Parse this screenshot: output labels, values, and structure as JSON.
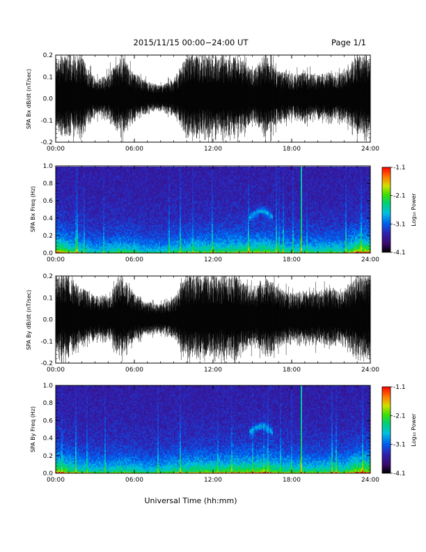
{
  "header": {
    "title": "2015/11/15  00:00−24:00 UT",
    "page": "Page 1/1"
  },
  "xlabel": "Universal Time (hh:mm)",
  "chart_data": [
    {
      "type": "line",
      "ylabel": "SPA Bx dB/dt (nT/sec)",
      "xlim": [
        0,
        24
      ],
      "ylim": [
        -0.2,
        0.2
      ],
      "x_ticks": [
        "00:00",
        "06:00",
        "12:00",
        "18:00",
        "24:00"
      ],
      "y_ticks": [
        "-0.2",
        "-0.1",
        "0.0",
        "0.1",
        "0.2"
      ],
      "y_tick_values": [
        -0.2,
        -0.1,
        0.0,
        0.1,
        0.2
      ],
      "series": [
        {
          "hours": [
            0,
            1,
            2,
            3,
            4,
            5,
            6,
            7,
            8,
            9,
            10,
            11,
            12,
            13,
            14,
            15,
            16,
            17,
            18,
            19,
            20,
            21,
            22,
            23,
            24
          ],
          "envelope": [
            0.2,
            0.2,
            0.2,
            0.09,
            0.11,
            0.2,
            0.12,
            0.08,
            0.06,
            0.09,
            0.2,
            0.2,
            0.2,
            0.2,
            0.2,
            0.13,
            0.2,
            0.13,
            0.11,
            0.12,
            0.11,
            0.13,
            0.12,
            0.2,
            0.2
          ]
        }
      ]
    },
    {
      "type": "heatmap",
      "ylabel": "SPA Bx Freq (Hz)",
      "xlim": [
        0,
        24
      ],
      "ylim": [
        0.0,
        1.0
      ],
      "x_ticks": [
        "00:00",
        "06:00",
        "12:00",
        "18:00",
        "24:00"
      ],
      "y_ticks": [
        "0.0",
        "0.2",
        "0.4",
        "0.6",
        "0.8",
        "1.0"
      ],
      "y_tick_values": [
        0.0,
        0.2,
        0.4,
        0.6,
        0.8,
        1.0
      ],
      "colorbar": {
        "label": "Log₁₀ Power",
        "ticks": [
          "-1.1",
          "-2.1",
          "-3.1",
          "-4.1"
        ],
        "tick_values": [
          -1.1,
          -2.1,
          -3.1,
          -4.1
        ],
        "range": [
          -4.1,
          -1.1
        ]
      },
      "hours": [
        0,
        1,
        2,
        3,
        4,
        5,
        6,
        7,
        8,
        9,
        10,
        11,
        12,
        13,
        14,
        15,
        16,
        17,
        18,
        19,
        20,
        21,
        22,
        23,
        24
      ],
      "activity": [
        0.95,
        0.7,
        0.55,
        0.45,
        0.5,
        0.6,
        0.55,
        0.45,
        0.45,
        0.55,
        0.6,
        0.65,
        0.65,
        0.65,
        0.7,
        0.7,
        0.75,
        0.6,
        0.55,
        0.55,
        0.55,
        0.6,
        0.55,
        0.95,
        0.95
      ],
      "features": [
        {
          "hour": 15.7,
          "freq": 0.45,
          "desc": "arc"
        },
        {
          "hour": 18.7,
          "freq": 0.5,
          "desc": "vertical line"
        }
      ]
    },
    {
      "type": "line",
      "ylabel": "SPA By dB/dt (nT/sec)",
      "xlim": [
        0,
        24
      ],
      "ylim": [
        -0.2,
        0.2
      ],
      "x_ticks": [
        "00:00",
        "06:00",
        "12:00",
        "18:00",
        "24:00"
      ],
      "y_ticks": [
        "-0.2",
        "-0.1",
        "0.0",
        "0.1",
        "0.2"
      ],
      "y_tick_values": [
        -0.2,
        -0.1,
        0.0,
        0.1,
        0.2
      ],
      "series": [
        {
          "hours": [
            0,
            1,
            2,
            3,
            4,
            5,
            6,
            7,
            8,
            9,
            10,
            11,
            12,
            13,
            14,
            15,
            16,
            17,
            18,
            19,
            20,
            21,
            22,
            23,
            24
          ],
          "envelope": [
            0.2,
            0.2,
            0.15,
            0.11,
            0.12,
            0.2,
            0.12,
            0.08,
            0.07,
            0.1,
            0.2,
            0.2,
            0.2,
            0.2,
            0.2,
            0.15,
            0.2,
            0.15,
            0.12,
            0.14,
            0.13,
            0.15,
            0.13,
            0.2,
            0.2
          ]
        }
      ]
    },
    {
      "type": "heatmap",
      "ylabel": "SPA By Freq (Hz)",
      "xlim": [
        0,
        24
      ],
      "ylim": [
        0.0,
        1.0
      ],
      "x_ticks": [
        "00:00",
        "06:00",
        "12:00",
        "18:00",
        "24:00"
      ],
      "y_ticks": [
        "0.0",
        "0.2",
        "0.4",
        "0.6",
        "0.8",
        "1.0"
      ],
      "y_tick_values": [
        0.0,
        0.2,
        0.4,
        0.6,
        0.8,
        1.0
      ],
      "colorbar": {
        "label": "Log₁₀ Power",
        "ticks": [
          "-1.1",
          "-2.1",
          "-3.1",
          "-4.1"
        ],
        "tick_values": [
          -1.1,
          -2.1,
          -3.1,
          -4.1
        ],
        "range": [
          -4.1,
          -1.1
        ]
      },
      "hours": [
        0,
        1,
        2,
        3,
        4,
        5,
        6,
        7,
        8,
        9,
        10,
        11,
        12,
        13,
        14,
        15,
        16,
        17,
        18,
        19,
        20,
        21,
        22,
        23,
        24
      ],
      "activity": [
        0.95,
        0.75,
        0.6,
        0.55,
        0.55,
        0.65,
        0.6,
        0.5,
        0.55,
        0.65,
        0.7,
        0.75,
        0.75,
        0.75,
        0.8,
        0.8,
        0.85,
        0.7,
        0.65,
        0.65,
        0.65,
        0.7,
        0.65,
        0.95,
        0.95
      ],
      "features": [
        {
          "hour": 15.7,
          "freq": 0.5,
          "desc": "arc"
        },
        {
          "hour": 18.7,
          "freq": 0.5,
          "desc": "vertical line"
        }
      ]
    }
  ]
}
